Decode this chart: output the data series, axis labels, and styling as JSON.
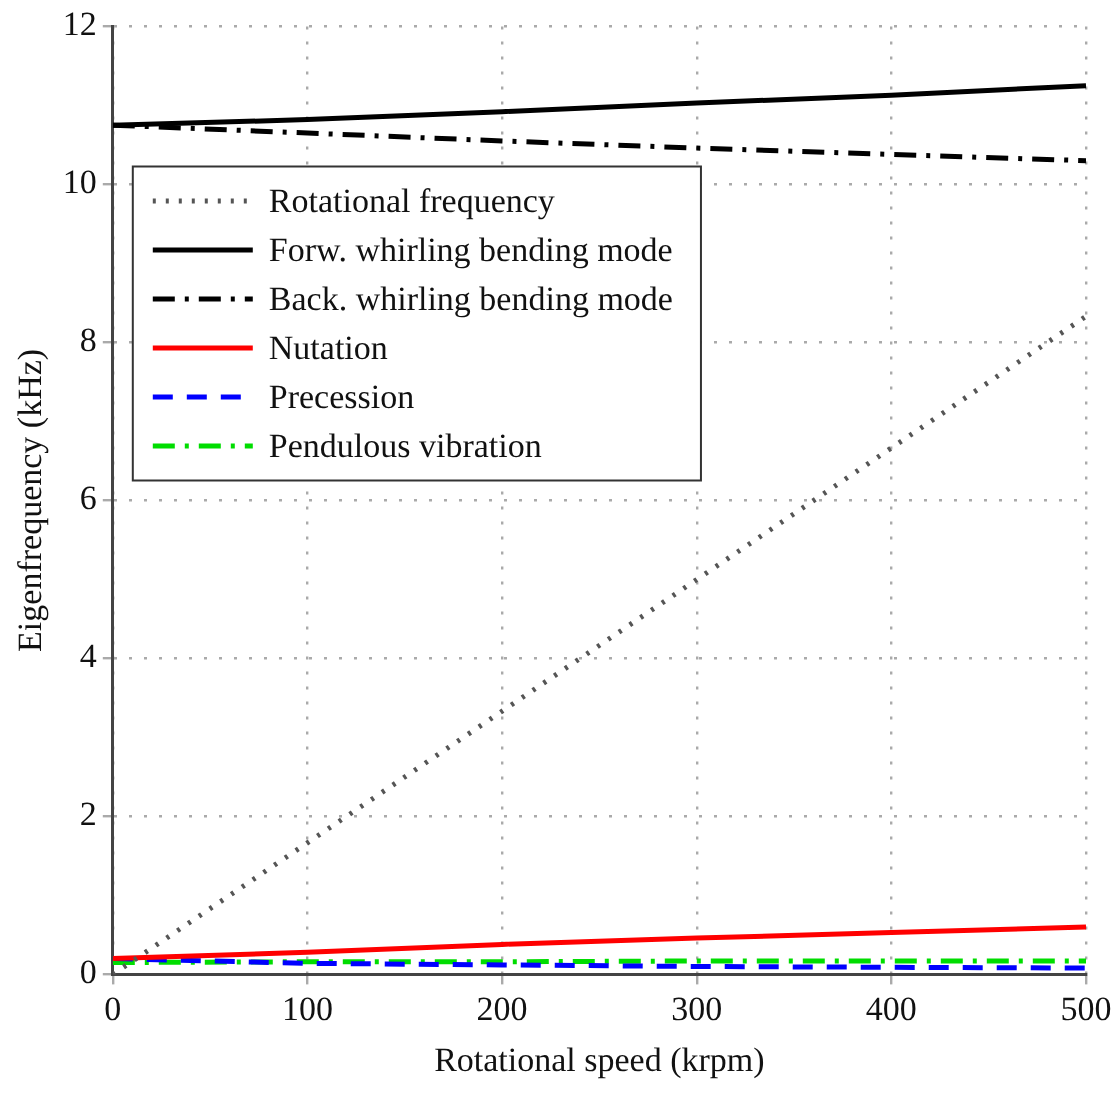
{
  "chart_data": {
    "type": "line",
    "xlabel": "Rotational speed (krpm)",
    "ylabel": "Eigenfrequency (kHz)",
    "x": [
      0,
      100,
      200,
      300,
      400,
      500
    ],
    "xlim": [
      0,
      500
    ],
    "xticks": [
      0,
      100,
      200,
      300,
      400,
      500
    ],
    "ylim": [
      0,
      12
    ],
    "yticks": [
      0,
      2,
      4,
      6,
      8,
      10,
      12
    ],
    "grid": true,
    "legend": "top left",
    "marker": "none",
    "series": [
      {
        "name": "Rotational frequency",
        "color": "#555555",
        "line_style": "dotted",
        "x": [
          0,
          500
        ],
        "values": [
          0,
          8.33
        ]
      },
      {
        "name": "Forw. whirling bending mode",
        "color": "#000000",
        "line_style": "solid",
        "values": [
          10.75,
          10.82,
          10.92,
          11.03,
          11.13,
          11.25
        ]
      },
      {
        "name": "Back. whirling bending mode",
        "color": "#000000",
        "line_style": "dashdot",
        "values": [
          10.75,
          10.65,
          10.55,
          10.46,
          10.38,
          10.3
        ]
      },
      {
        "name": "Nutation",
        "color": "#ff0000",
        "line_style": "solid",
        "values": [
          0.2,
          0.28,
          0.38,
          0.46,
          0.53,
          0.6
        ]
      },
      {
        "name": "Precession",
        "color": "#0000ff",
        "line_style": "dashed",
        "values": [
          0.2,
          0.14,
          0.12,
          0.1,
          0.09,
          0.08
        ]
      },
      {
        "name": "Pendulous vibration",
        "color": "#00dd00",
        "line_style": "dashdot",
        "values": [
          0.15,
          0.16,
          0.16,
          0.17,
          0.17,
          0.17
        ]
      }
    ]
  }
}
